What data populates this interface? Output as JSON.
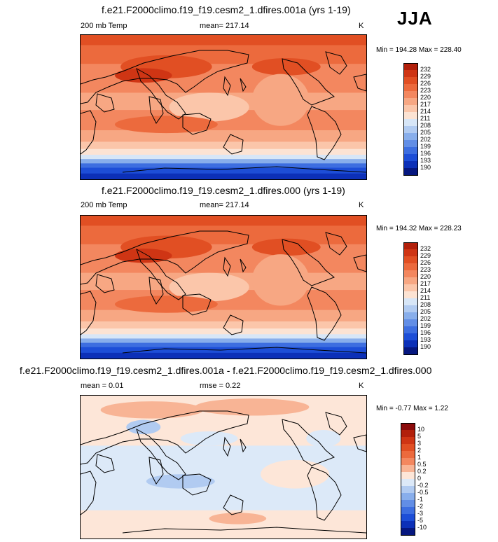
{
  "season": "JJA",
  "units": "K",
  "panels": [
    {
      "title": "f.e21.F2000climo.f19_f19.cesm2_1.dfires.001a (yrs 1-19)",
      "left_label": "200 mb Temp",
      "center_label": "mean= 217.14",
      "min_max": "Min = 194.28 Max = 228.40"
    },
    {
      "title": "f.e21.F2000climo.f19_f19.cesm2_1.dfires.000 (yrs 1-19)",
      "left_label": "200 mb Temp",
      "center_label": "mean= 217.14",
      "min_max": "Min = 194.32 Max = 228.23"
    },
    {
      "title": "f.e21.F2000climo.f19_f19.cesm2_1.dfires.001a - f.e21.F2000climo.f19_f19.cesm2_1.dfires.000",
      "left_label": "mean =   0.01",
      "center_label": "rmse =   0.22",
      "min_max": "Min =  -0.77 Max =   1.22"
    }
  ],
  "chart_data": [
    {
      "type": "heatmap",
      "title": "f.e21.F2000climo.f19_f19.cesm2_1.dfires.001a (yrs 1-19)",
      "variable": "200 mb Temp",
      "mean": 217.14,
      "min": 194.28,
      "max": 228.4,
      "units": "K",
      "levels": [
        "232",
        "229",
        "226",
        "223",
        "220",
        "217",
        "214",
        "211",
        "208",
        "205",
        "202",
        "199",
        "196",
        "193",
        "190"
      ],
      "colors": [
        "#b2200b",
        "#cf3514",
        "#e14f23",
        "#ec6a3d",
        "#f3875f",
        "#f7a783",
        "#fbc6aa",
        "#fce3d3",
        "#d7e6f7",
        "#b1cbf1",
        "#88aeeb",
        "#628ee6",
        "#3d6ee0",
        "#1d4ed7",
        "#0c30b8",
        "#06177f"
      ]
    },
    {
      "type": "heatmap",
      "title": "f.e21.F2000climo.f19_f19.cesm2_1.dfires.000 (yrs 1-19)",
      "variable": "200 mb Temp",
      "mean": 217.14,
      "min": 194.32,
      "max": 228.23,
      "units": "K",
      "levels": [
        "232",
        "229",
        "226",
        "223",
        "220",
        "217",
        "214",
        "211",
        "208",
        "205",
        "202",
        "199",
        "196",
        "193",
        "190"
      ],
      "colors": [
        "#b2200b",
        "#cf3514",
        "#e14f23",
        "#ec6a3d",
        "#f3875f",
        "#f7a783",
        "#fbc6aa",
        "#fce3d3",
        "#d7e6f7",
        "#b1cbf1",
        "#88aeeb",
        "#628ee6",
        "#3d6ee0",
        "#1d4ed7",
        "#0c30b8",
        "#06177f"
      ]
    },
    {
      "type": "heatmap",
      "title": "f.e21.F2000climo.f19_f19.cesm2_1.dfires.001a - f.e21.F2000climo.f19_f19.cesm2_1.dfires.000",
      "mean": 0.01,
      "rmse": 0.22,
      "min": -0.77,
      "max": 1.22,
      "units": "K",
      "levels": [
        "10",
        "5",
        "3",
        "2",
        "1",
        "0.5",
        "0.2",
        "0",
        "-0.2",
        "-0.5",
        "-1",
        "-2",
        "-3",
        "-5",
        "-10"
      ],
      "colors": [
        "#8b0a0a",
        "#b2200b",
        "#cf3514",
        "#e14f23",
        "#ec6a3d",
        "#f3875f",
        "#f8b495",
        "#fde6d8",
        "#dce9f8",
        "#b1cbf1",
        "#88aeeb",
        "#628ee6",
        "#3d6ee0",
        "#1d4ed7",
        "#0c30b8",
        "#06177f"
      ]
    }
  ]
}
